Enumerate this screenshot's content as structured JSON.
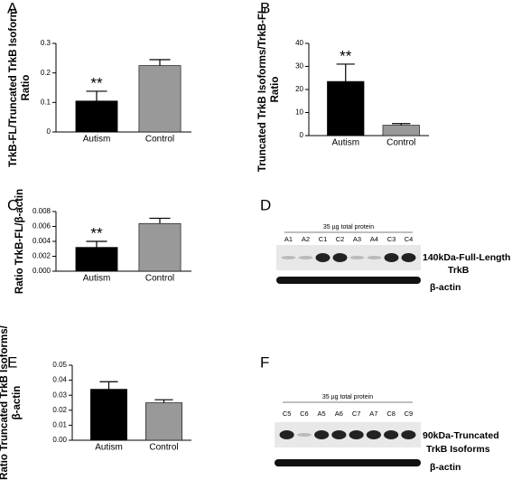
{
  "chart_data": [
    {
      "type": "bar",
      "panel": "A",
      "y_label": [
        "TrkB-FL/Truncated TrkB Isoform",
        "Ratio"
      ],
      "categories": [
        "Autism",
        "Control"
      ],
      "values": [
        0.105,
        0.225
      ],
      "errors": [
        0.033,
        0.02
      ],
      "colors": [
        "#000000",
        "#999999"
      ],
      "annotations": [
        "**",
        null
      ],
      "ylim": [
        0,
        0.3
      ],
      "yticks": [
        0,
        0.1,
        0.2,
        0.3
      ]
    },
    {
      "type": "bar",
      "panel": "B",
      "y_label": [
        "Truncated TrkB Isoforms/TrkB-FL",
        "Ratio"
      ],
      "categories": [
        "Autism",
        "Control"
      ],
      "values": [
        23.5,
        4.5
      ],
      "errors": [
        7.5,
        0.7
      ],
      "colors": [
        "#000000",
        "#999999"
      ],
      "annotations": [
        "**",
        null
      ],
      "ylim": [
        0,
        40
      ],
      "yticks": [
        0,
        10,
        20,
        30,
        40
      ]
    },
    {
      "type": "bar",
      "panel": "C",
      "y_label": [
        "Ratio TrkB-FL/β-actin"
      ],
      "categories": [
        "Autism",
        "Control"
      ],
      "values": [
        0.0032,
        0.0064
      ],
      "errors": [
        0.0008,
        0.0007
      ],
      "colors": [
        "#000000",
        "#999999"
      ],
      "annotations": [
        "**",
        null
      ],
      "ylim": [
        0,
        0.008
      ],
      "yticks": [
        {
          "value": 0,
          "label": "0.000"
        },
        0.002,
        0.004,
        0.006,
        0.008
      ]
    },
    {
      "type": "bar",
      "panel": "E",
      "y_label": [
        "Ratio Truncated TrkB Isoforms/",
        "β-actin"
      ],
      "categories": [
        "Autism",
        "Control"
      ],
      "values": [
        0.034,
        0.025
      ],
      "errors": [
        0.005,
        0.002
      ],
      "colors": [
        "#000000",
        "#999999"
      ],
      "ylim": [
        0,
        0.05
      ],
      "yticks": [
        {
          "value": 0,
          "label": "0.00"
        },
        0.01,
        0.02,
        0.03,
        0.04,
        0.05
      ]
    }
  ],
  "blots": [
    {
      "panel": "D",
      "header": "35 µg total protein",
      "lanes": [
        "A1",
        "A2",
        "C1",
        "C2",
        "A3",
        "A4",
        "C3",
        "C4"
      ],
      "labels": [
        "140kDa-Full-Length",
        "TrkB",
        "β-actin"
      ]
    },
    {
      "panel": "F",
      "header": "35 µg total protein",
      "lanes": [
        "C5",
        "C6",
        "A5",
        "A6",
        "C7",
        "A7",
        "C8",
        "C9"
      ],
      "labels": [
        "90kDa-Truncated",
        "TrkB Isoforms",
        "β-actin"
      ]
    }
  ]
}
